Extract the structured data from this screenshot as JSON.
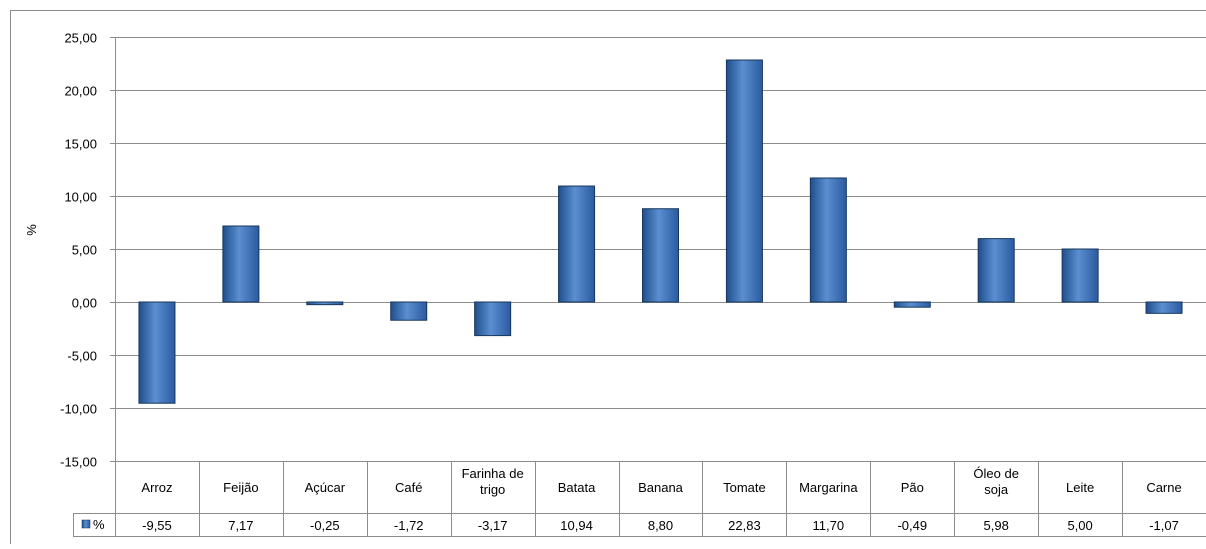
{
  "chart_data": {
    "type": "bar",
    "ylabel": "%",
    "ylim": [
      -15,
      25
    ],
    "y_step": 5,
    "y_tick_labels": [
      "-15,00",
      "-10,00",
      "-5,00",
      "0,00",
      "5,00",
      "10,00",
      "15,00",
      "20,00",
      "25,00"
    ],
    "grid": true,
    "categories": [
      "Arroz",
      "Feijão",
      "Açúcar",
      "Café",
      "Farinha de trigo",
      "Batata",
      "Banana",
      "Tomate",
      "Margarina",
      "Pão",
      "Óleo de soja",
      "Leite",
      "Carne"
    ],
    "category_lines": [
      [
        "Arroz"
      ],
      [
        "Feijão"
      ],
      [
        "Açúcar"
      ],
      [
        "Café"
      ],
      [
        "Farinha de",
        "trigo"
      ],
      [
        "Batata"
      ],
      [
        "Banana"
      ],
      [
        "Tomate"
      ],
      [
        "Margarina"
      ],
      [
        "Pão"
      ],
      [
        "Óleo de",
        "soja"
      ],
      [
        "Leite"
      ],
      [
        "Carne"
      ]
    ],
    "series": [
      {
        "name": "%",
        "values": [
          -9.55,
          7.17,
          -0.25,
          -1.72,
          -3.17,
          10.94,
          8.8,
          22.83,
          11.7,
          -0.49,
          5.98,
          5.0,
          -1.07
        ],
        "value_labels": [
          "-9,55",
          "7,17",
          "-0,25",
          "-1,72",
          "-3,17",
          "10,94",
          "8,80",
          "22,83",
          "11,70",
          "-0,49",
          "5,98",
          "5,00",
          "-1,07"
        ],
        "color": "#4a7ebb"
      }
    ],
    "data_table": true,
    "legend": "data-table"
  }
}
